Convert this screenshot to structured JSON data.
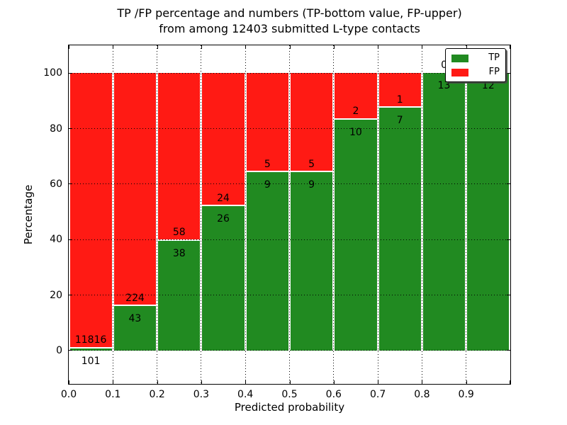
{
  "chart_data": {
    "type": "bar",
    "stacked": true,
    "title": "TP /FP percentage and numbers (TP-bottom value, FP-upper)",
    "subtitle": "from among 12403 submitted L-type contacts",
    "total_contacts": 12403,
    "xlabel": "Predicted probability",
    "ylabel": "Percentage",
    "x_tick_labels": [
      "0.0",
      "0.1",
      "0.2",
      "0.3",
      "0.4",
      "0.5",
      "0.6",
      "0.7",
      "0.8",
      "0.9"
    ],
    "y_tick_values": [
      0,
      20,
      40,
      60,
      80,
      100
    ],
    "xlim": [
      0.0,
      1.0
    ],
    "ylim": [
      -12,
      110
    ],
    "bin_width": 0.1,
    "grid": true,
    "legend_position": "upper right",
    "legend": [
      {
        "label": "TP",
        "color": "#218a21"
      },
      {
        "label": "FP",
        "color": "#ff1a14"
      }
    ],
    "bars": [
      {
        "bin_start": 0.0,
        "bin_end": 0.1,
        "tp": 101,
        "fp": 11816,
        "tp_pct": 0.85
      },
      {
        "bin_start": 0.1,
        "bin_end": 0.2,
        "tp": 43,
        "fp": 224,
        "tp_pct": 16.1
      },
      {
        "bin_start": 0.2,
        "bin_end": 0.3,
        "tp": 38,
        "fp": 58,
        "tp_pct": 39.6
      },
      {
        "bin_start": 0.3,
        "bin_end": 0.4,
        "tp": 26,
        "fp": 24,
        "tp_pct": 52.0
      },
      {
        "bin_start": 0.4,
        "bin_end": 0.5,
        "tp": 9,
        "fp": 5,
        "tp_pct": 64.3
      },
      {
        "bin_start": 0.5,
        "bin_end": 0.6,
        "tp": 9,
        "fp": 5,
        "tp_pct": 64.3
      },
      {
        "bin_start": 0.6,
        "bin_end": 0.7,
        "tp": 10,
        "fp": 2,
        "tp_pct": 83.3
      },
      {
        "bin_start": 0.7,
        "bin_end": 0.8,
        "tp": 7,
        "fp": 1,
        "tp_pct": 87.5
      },
      {
        "bin_start": 0.8,
        "bin_end": 0.9,
        "tp": 13,
        "fp": 0,
        "tp_pct": 100
      },
      {
        "bin_start": 0.9,
        "bin_end": 1.0,
        "tp": 12,
        "fp": null,
        "tp_pct": 100
      }
    ]
  },
  "colors": {
    "tp_green": "#218a21",
    "fp_red": "#ff1a14",
    "grid": "#000000",
    "text": "#000000",
    "background": "#ffffff"
  }
}
